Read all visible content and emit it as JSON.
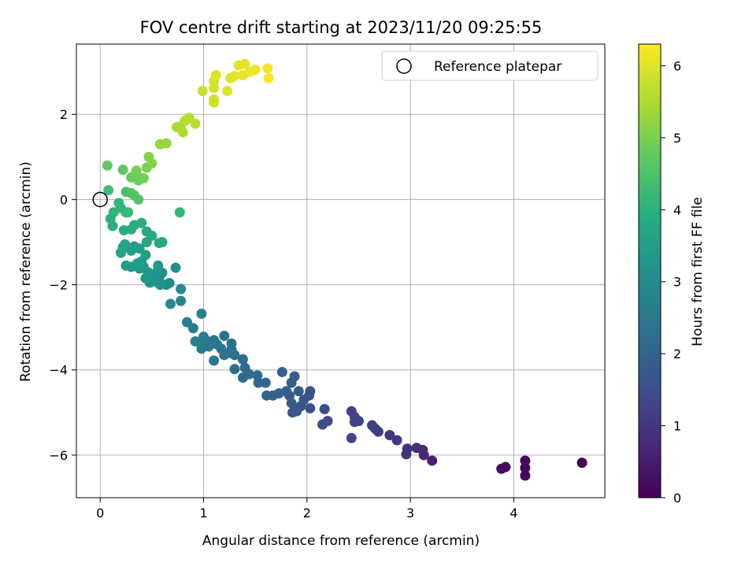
{
  "chart_data": {
    "type": "scatter",
    "title": "FOV centre drift starting at 2023/11/20 09:25:55",
    "xlabel": "Angular distance from reference (arcmin)",
    "ylabel": "Rotation from reference (arcmin)",
    "xlim": [
      -0.23,
      4.88
    ],
    "ylim": [
      -7.0,
      3.65
    ],
    "xticks": [
      0,
      1,
      2,
      3,
      4
    ],
    "yticks": [
      -6,
      -4,
      -2,
      0,
      2
    ],
    "grid": true,
    "legend": {
      "placement": "top-right",
      "entries": [
        "Reference platepar"
      ]
    },
    "reference_point": {
      "x": 0,
      "y": 0
    },
    "colorbar": {
      "label": "Hours from first FF file",
      "range": [
        0,
        6.3
      ],
      "ticks": [
        0,
        1,
        2,
        3,
        4,
        5,
        6
      ],
      "colormap": "viridis"
    },
    "points": [
      {
        "x": 4.66,
        "y": -6.18,
        "h": 0.05
      },
      {
        "x": 4.11,
        "y": -6.13,
        "h": 0.1
      },
      {
        "x": 4.11,
        "y": -6.3,
        "h": 0.12
      },
      {
        "x": 4.11,
        "y": -6.48,
        "h": 0.15
      },
      {
        "x": 3.92,
        "y": -6.28,
        "h": 0.18
      },
      {
        "x": 3.88,
        "y": -6.32,
        "h": 0.2
      },
      {
        "x": 3.21,
        "y": -6.13,
        "h": 0.6
      },
      {
        "x": 3.13,
        "y": -6.0,
        "h": 0.7
      },
      {
        "x": 3.12,
        "y": -5.88,
        "h": 0.75
      },
      {
        "x": 3.06,
        "y": -5.83,
        "h": 0.8
      },
      {
        "x": 2.97,
        "y": -5.85,
        "h": 0.85
      },
      {
        "x": 2.96,
        "y": -5.98,
        "h": 0.9
      },
      {
        "x": 2.87,
        "y": -5.65,
        "h": 1.0
      },
      {
        "x": 2.8,
        "y": -5.53,
        "h": 1.05
      },
      {
        "x": 2.69,
        "y": -5.45,
        "h": 1.1
      },
      {
        "x": 2.63,
        "y": -5.3,
        "h": 1.15
      },
      {
        "x": 2.66,
        "y": -5.38,
        "h": 1.18
      },
      {
        "x": 2.5,
        "y": -5.2,
        "h": 1.25
      },
      {
        "x": 2.46,
        "y": -5.22,
        "h": 1.28
      },
      {
        "x": 2.43,
        "y": -4.97,
        "h": 1.3
      },
      {
        "x": 2.46,
        "y": -5.1,
        "h": 1.32
      },
      {
        "x": 2.43,
        "y": -5.6,
        "h": 1.35
      },
      {
        "x": 2.2,
        "y": -5.2,
        "h": 1.4
      },
      {
        "x": 2.15,
        "y": -5.28,
        "h": 1.45
      },
      {
        "x": 2.17,
        "y": -4.92,
        "h": 1.5
      },
      {
        "x": 2.03,
        "y": -4.9,
        "h": 1.55
      },
      {
        "x": 2.03,
        "y": -4.5,
        "h": 1.6
      },
      {
        "x": 2.02,
        "y": -4.6,
        "h": 1.62
      },
      {
        "x": 1.97,
        "y": -4.7,
        "h": 1.65
      },
      {
        "x": 1.94,
        "y": -4.85,
        "h": 1.68
      },
      {
        "x": 1.92,
        "y": -4.5,
        "h": 1.7
      },
      {
        "x": 1.9,
        "y": -4.97,
        "h": 1.72
      },
      {
        "x": 1.86,
        "y": -5.0,
        "h": 1.75
      },
      {
        "x": 1.85,
        "y": -4.78,
        "h": 1.78
      },
      {
        "x": 1.83,
        "y": -4.6,
        "h": 1.8
      },
      {
        "x": 1.88,
        "y": -4.15,
        "h": 1.82
      },
      {
        "x": 1.85,
        "y": -4.3,
        "h": 1.85
      },
      {
        "x": 1.8,
        "y": -4.5,
        "h": 1.88
      },
      {
        "x": 1.76,
        "y": -4.05,
        "h": 1.9
      },
      {
        "x": 1.73,
        "y": -4.55,
        "h": 1.95
      },
      {
        "x": 1.67,
        "y": -4.6,
        "h": 2.0
      },
      {
        "x": 1.61,
        "y": -4.6,
        "h": 2.02
      },
      {
        "x": 1.6,
        "y": -4.3,
        "h": 2.05
      },
      {
        "x": 1.53,
        "y": -4.3,
        "h": 2.08
      },
      {
        "x": 1.52,
        "y": -4.13,
        "h": 2.1
      },
      {
        "x": 1.44,
        "y": -4.1,
        "h": 2.15
      },
      {
        "x": 1.4,
        "y": -3.95,
        "h": 2.18
      },
      {
        "x": 1.38,
        "y": -3.75,
        "h": 2.2
      },
      {
        "x": 1.38,
        "y": -4.18,
        "h": 2.22
      },
      {
        "x": 1.3,
        "y": -3.98,
        "h": 2.25
      },
      {
        "x": 1.3,
        "y": -3.65,
        "h": 2.28
      },
      {
        "x": 1.27,
        "y": -3.52,
        "h": 2.3
      },
      {
        "x": 1.27,
        "y": -3.38,
        "h": 2.32
      },
      {
        "x": 1.25,
        "y": -3.6,
        "h": 2.35
      },
      {
        "x": 1.2,
        "y": -3.65,
        "h": 2.4
      },
      {
        "x": 1.2,
        "y": -3.2,
        "h": 2.42
      },
      {
        "x": 1.17,
        "y": -3.5,
        "h": 2.45
      },
      {
        "x": 1.13,
        "y": -3.4,
        "h": 2.48
      },
      {
        "x": 1.1,
        "y": -3.3,
        "h": 2.5
      },
      {
        "x": 1.1,
        "y": -3.78,
        "h": 2.52
      },
      {
        "x": 1.05,
        "y": -3.45,
        "h": 2.55
      },
      {
        "x": 1.02,
        "y": -3.3,
        "h": 2.58
      },
      {
        "x": 1.0,
        "y": -3.22,
        "h": 2.6
      },
      {
        "x": 0.98,
        "y": -3.5,
        "h": 2.62
      },
      {
        "x": 0.96,
        "y": -3.35,
        "h": 2.65
      },
      {
        "x": 0.92,
        "y": -3.33,
        "h": 2.68
      },
      {
        "x": 0.9,
        "y": -3.02,
        "h": 2.7
      },
      {
        "x": 0.84,
        "y": -2.88,
        "h": 2.75
      },
      {
        "x": 0.98,
        "y": -2.68,
        "h": 2.8
      },
      {
        "x": 0.78,
        "y": -2.38,
        "h": 2.9
      },
      {
        "x": 0.78,
        "y": -2.1,
        "h": 2.95
      },
      {
        "x": 0.68,
        "y": -2.45,
        "h": 3.0
      },
      {
        "x": 0.67,
        "y": -1.96,
        "h": 3.05
      },
      {
        "x": 0.64,
        "y": -2.0,
        "h": 3.08
      },
      {
        "x": 0.73,
        "y": -1.6,
        "h": 3.1
      },
      {
        "x": 0.6,
        "y": -1.72,
        "h": 3.12
      },
      {
        "x": 0.58,
        "y": -2.0,
        "h": 3.15
      },
      {
        "x": 0.57,
        "y": -1.85,
        "h": 3.18
      },
      {
        "x": 0.55,
        "y": -1.7,
        "h": 3.2
      },
      {
        "x": 0.52,
        "y": -1.92,
        "h": 3.22
      },
      {
        "x": 0.5,
        "y": -1.8,
        "h": 3.25
      },
      {
        "x": 0.48,
        "y": -1.95,
        "h": 3.28
      },
      {
        "x": 0.46,
        "y": -1.7,
        "h": 3.3
      },
      {
        "x": 0.44,
        "y": -1.85,
        "h": 3.32
      },
      {
        "x": 0.42,
        "y": -1.58,
        "h": 3.35
      },
      {
        "x": 0.56,
        "y": -1.55,
        "h": 3.38
      },
      {
        "x": 0.38,
        "y": -1.62,
        "h": 3.4
      },
      {
        "x": 0.36,
        "y": -1.5,
        "h": 3.42
      },
      {
        "x": 0.3,
        "y": -1.58,
        "h": 3.45
      },
      {
        "x": 0.25,
        "y": -1.55,
        "h": 3.48
      },
      {
        "x": 0.4,
        "y": -1.45,
        "h": 3.5
      },
      {
        "x": 0.44,
        "y": -1.3,
        "h": 3.52
      },
      {
        "x": 0.38,
        "y": -1.15,
        "h": 3.55
      },
      {
        "x": 0.33,
        "y": -1.1,
        "h": 3.58
      },
      {
        "x": 0.3,
        "y": -1.2,
        "h": 3.6
      },
      {
        "x": 0.22,
        "y": -1.12,
        "h": 3.62
      },
      {
        "x": 0.2,
        "y": -1.25,
        "h": 3.65
      },
      {
        "x": 0.24,
        "y": -1.05,
        "h": 3.68
      },
      {
        "x": 0.45,
        "y": -1.0,
        "h": 3.7
      },
      {
        "x": 0.57,
        "y": -1.02,
        "h": 3.72
      },
      {
        "x": 0.6,
        "y": -1.0,
        "h": 3.75
      },
      {
        "x": 0.5,
        "y": -0.85,
        "h": 3.8
      },
      {
        "x": 0.45,
        "y": -0.75,
        "h": 3.82
      },
      {
        "x": 0.4,
        "y": -0.55,
        "h": 3.85
      },
      {
        "x": 0.33,
        "y": -0.6,
        "h": 3.88
      },
      {
        "x": 0.3,
        "y": -0.7,
        "h": 3.9
      },
      {
        "x": 0.23,
        "y": -0.72,
        "h": 3.92
      },
      {
        "x": 0.12,
        "y": -0.62,
        "h": 3.95
      },
      {
        "x": 0.1,
        "y": -0.45,
        "h": 3.98
      },
      {
        "x": 0.13,
        "y": -0.3,
        "h": 4.0
      },
      {
        "x": 0.25,
        "y": -0.3,
        "h": 4.05
      },
      {
        "x": 0.2,
        "y": -0.2,
        "h": 4.1
      },
      {
        "x": 0.18,
        "y": -0.08,
        "h": 4.15
      },
      {
        "x": 0.77,
        "y": -0.3,
        "h": 4.2
      },
      {
        "x": 0.27,
        "y": -0.3,
        "h": 4.25
      },
      {
        "x": 0.08,
        "y": 0.22,
        "h": 4.35
      },
      {
        "x": 0.25,
        "y": 0.18,
        "h": 4.45
      },
      {
        "x": 0.3,
        "y": 0.15,
        "h": 4.5
      },
      {
        "x": 0.37,
        "y": 0.0,
        "h": 4.55
      },
      {
        "x": 0.33,
        "y": 0.1,
        "h": 4.6
      },
      {
        "x": 0.22,
        "y": 0.7,
        "h": 4.7
      },
      {
        "x": 0.07,
        "y": 0.8,
        "h": 4.75
      },
      {
        "x": 0.3,
        "y": 0.52,
        "h": 4.8
      },
      {
        "x": 0.35,
        "y": 0.6,
        "h": 4.85
      },
      {
        "x": 0.37,
        "y": 0.45,
        "h": 4.9
      },
      {
        "x": 0.42,
        "y": 0.5,
        "h": 4.95
      },
      {
        "x": 0.35,
        "y": 0.68,
        "h": 5.0
      },
      {
        "x": 0.45,
        "y": 0.75,
        "h": 5.05
      },
      {
        "x": 0.5,
        "y": 0.85,
        "h": 5.1
      },
      {
        "x": 0.47,
        "y": 1.0,
        "h": 5.15
      },
      {
        "x": 0.58,
        "y": 1.3,
        "h": 5.25
      },
      {
        "x": 0.64,
        "y": 1.32,
        "h": 5.3
      },
      {
        "x": 0.74,
        "y": 1.7,
        "h": 5.45
      },
      {
        "x": 0.78,
        "y": 1.72,
        "h": 5.5
      },
      {
        "x": 0.8,
        "y": 1.58,
        "h": 5.55
      },
      {
        "x": 0.82,
        "y": 1.85,
        "h": 5.58
      },
      {
        "x": 0.86,
        "y": 1.92,
        "h": 5.6
      },
      {
        "x": 0.92,
        "y": 1.78,
        "h": 5.65
      },
      {
        "x": 0.99,
        "y": 2.55,
        "h": 5.8
      },
      {
        "x": 1.1,
        "y": 2.35,
        "h": 5.85
      },
      {
        "x": 1.1,
        "y": 2.28,
        "h": 5.88
      },
      {
        "x": 1.1,
        "y": 2.62,
        "h": 5.9
      },
      {
        "x": 1.1,
        "y": 2.78,
        "h": 5.92
      },
      {
        "x": 1.12,
        "y": 2.92,
        "h": 5.95
      },
      {
        "x": 1.23,
        "y": 2.55,
        "h": 5.98
      },
      {
        "x": 1.26,
        "y": 2.85,
        "h": 6.0
      },
      {
        "x": 1.3,
        "y": 2.9,
        "h": 6.02
      },
      {
        "x": 1.34,
        "y": 3.15,
        "h": 6.05
      },
      {
        "x": 1.4,
        "y": 3.18,
        "h": 6.08
      },
      {
        "x": 1.38,
        "y": 2.92,
        "h": 6.1
      },
      {
        "x": 1.45,
        "y": 3.0,
        "h": 6.12
      },
      {
        "x": 1.5,
        "y": 3.05,
        "h": 6.15
      },
      {
        "x": 1.62,
        "y": 3.08,
        "h": 6.2
      },
      {
        "x": 1.63,
        "y": 2.85,
        "h": 6.25
      }
    ]
  }
}
